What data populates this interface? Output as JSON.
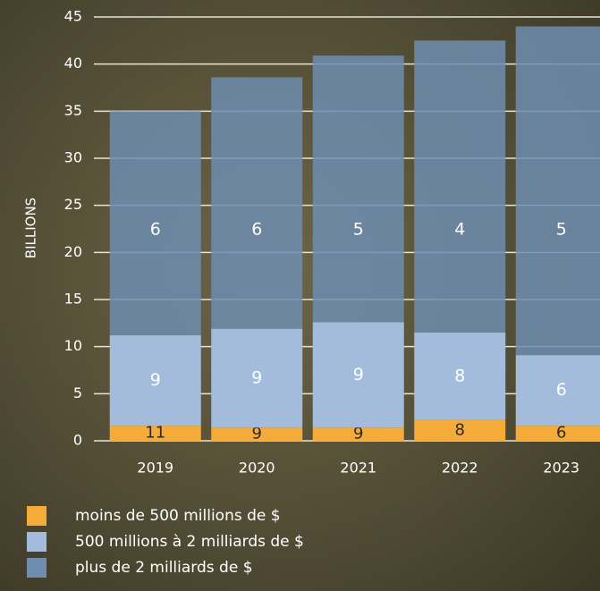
{
  "chart_data": {
    "type": "stacked-bar",
    "y_axis_label": "BILLIONS",
    "categories": [
      "2019",
      "2020",
      "2021",
      "2022",
      "2023"
    ],
    "series": [
      {
        "name": "moins de 500 millions de $",
        "color": "#f5ab3a",
        "values": [
          1.6,
          1.4,
          1.4,
          2.2,
          1.6
        ],
        "segment_labels": [
          11,
          9,
          9,
          8,
          6
        ]
      },
      {
        "name": "500 millions à 2 milliards de $",
        "color": "#a3bcdc",
        "values": [
          9.6,
          10.5,
          11.2,
          9.3,
          7.5
        ],
        "segment_labels": [
          9,
          9,
          9,
          8,
          6
        ]
      },
      {
        "name": "plus de 2 milliards de $",
        "color": "#6f8db0",
        "values": [
          23.8,
          26.7,
          28.3,
          31.0,
          34.9
        ],
        "segment_labels": [
          6,
          6,
          5,
          4,
          5
        ]
      }
    ],
    "ylim": [
      0,
      45
    ],
    "yticks": [
      0,
      5,
      10,
      15,
      20,
      25,
      30,
      35,
      40,
      45
    ],
    "grid": true
  }
}
